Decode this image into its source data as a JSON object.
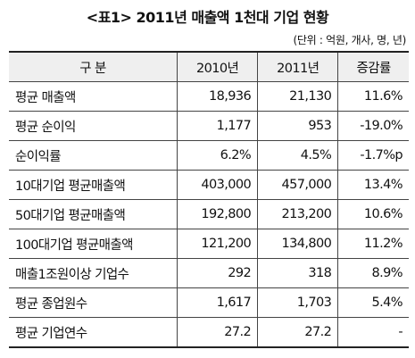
{
  "header": {
    "title": "<표1> 2011년 매출액 1천대 기업 현황",
    "unit": "(단위 : 억원, 개사, 명, 년)"
  },
  "table": {
    "columns": [
      "구 분",
      "2010년",
      "2011년",
      "증감률"
    ],
    "rows": [
      [
        "평균 매출액",
        "18,936",
        "21,130",
        "11.6%"
      ],
      [
        "평균 순이익",
        "1,177",
        "953",
        "-19.0%"
      ],
      [
        "순이익률",
        "6.2%",
        "4.5%",
        "-1.7%p"
      ],
      [
        "10대기업 평균매출액",
        "403,000",
        "457,000",
        "13.4%"
      ],
      [
        "50대기업 평균매출액",
        "192,800",
        "213,200",
        "10.6%"
      ],
      [
        "100대기업 평균매출액",
        "121,200",
        "134,800",
        "11.2%"
      ],
      [
        "매출1조원이상 기업수",
        "292",
        "318",
        "8.9%"
      ],
      [
        "평균 종업원수",
        "1,617",
        "1,703",
        "5.4%"
      ],
      [
        "평균 기업연수",
        "27.2",
        "27.2",
        "-"
      ]
    ]
  }
}
